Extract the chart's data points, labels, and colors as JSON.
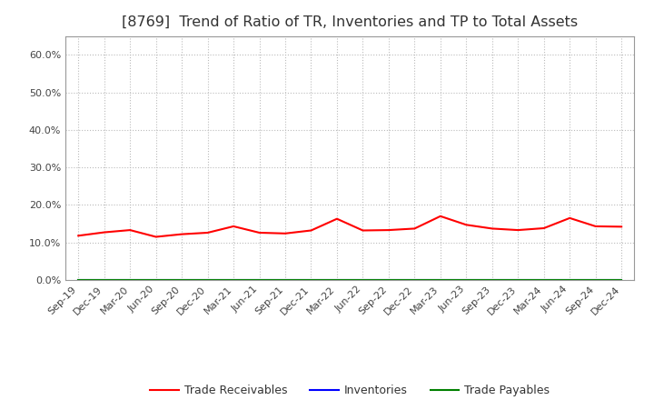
{
  "title": "[8769]  Trend of Ratio of TR, Inventories and TP to Total Assets",
  "x_labels": [
    "Sep-19",
    "Dec-19",
    "Mar-20",
    "Jun-20",
    "Sep-20",
    "Dec-20",
    "Mar-21",
    "Jun-21",
    "Sep-21",
    "Dec-21",
    "Mar-22",
    "Jun-22",
    "Sep-22",
    "Dec-22",
    "Mar-23",
    "Jun-23",
    "Sep-23",
    "Dec-23",
    "Mar-24",
    "Jun-24",
    "Sep-24",
    "Dec-24"
  ],
  "trade_receivables": [
    0.118,
    0.127,
    0.133,
    0.115,
    0.122,
    0.126,
    0.143,
    0.126,
    0.124,
    0.132,
    0.163,
    0.132,
    0.133,
    0.137,
    0.17,
    0.147,
    0.137,
    0.133,
    0.138,
    0.165,
    0.143,
    0.142
  ],
  "inventories": [
    0.0,
    0.0,
    0.0,
    0.0,
    0.0,
    0.0,
    0.0,
    0.0,
    0.0,
    0.0,
    0.0,
    0.0,
    0.0,
    0.0,
    0.0,
    0.0,
    0.0,
    0.0,
    0.0,
    0.0,
    0.0,
    0.0
  ],
  "trade_payables": [
    0.0,
    0.0,
    0.0,
    0.0,
    0.0,
    0.0,
    0.0,
    0.0,
    0.0,
    0.0,
    0.0,
    0.0,
    0.0,
    0.0,
    0.0,
    0.0,
    0.0,
    0.0,
    0.0,
    0.0,
    0.0,
    0.0
  ],
  "tr_color": "#FF0000",
  "inv_color": "#0000FF",
  "tp_color": "#008000",
  "ylim": [
    0.0,
    0.65
  ],
  "yticks": [
    0.0,
    0.1,
    0.2,
    0.3,
    0.4,
    0.5,
    0.6
  ],
  "ytick_labels": [
    "0.0%",
    "10.0%",
    "20.0%",
    "30.0%",
    "40.0%",
    "50.0%",
    "60.0%"
  ],
  "background_color": "#FFFFFF",
  "plot_bg_color": "#FFFFFF",
  "grid_color": "#BBBBBB",
  "title_fontsize": 11.5,
  "tick_fontsize": 8,
  "legend_labels": [
    "Trade Receivables",
    "Inventories",
    "Trade Payables"
  ],
  "legend_fontsize": 9
}
